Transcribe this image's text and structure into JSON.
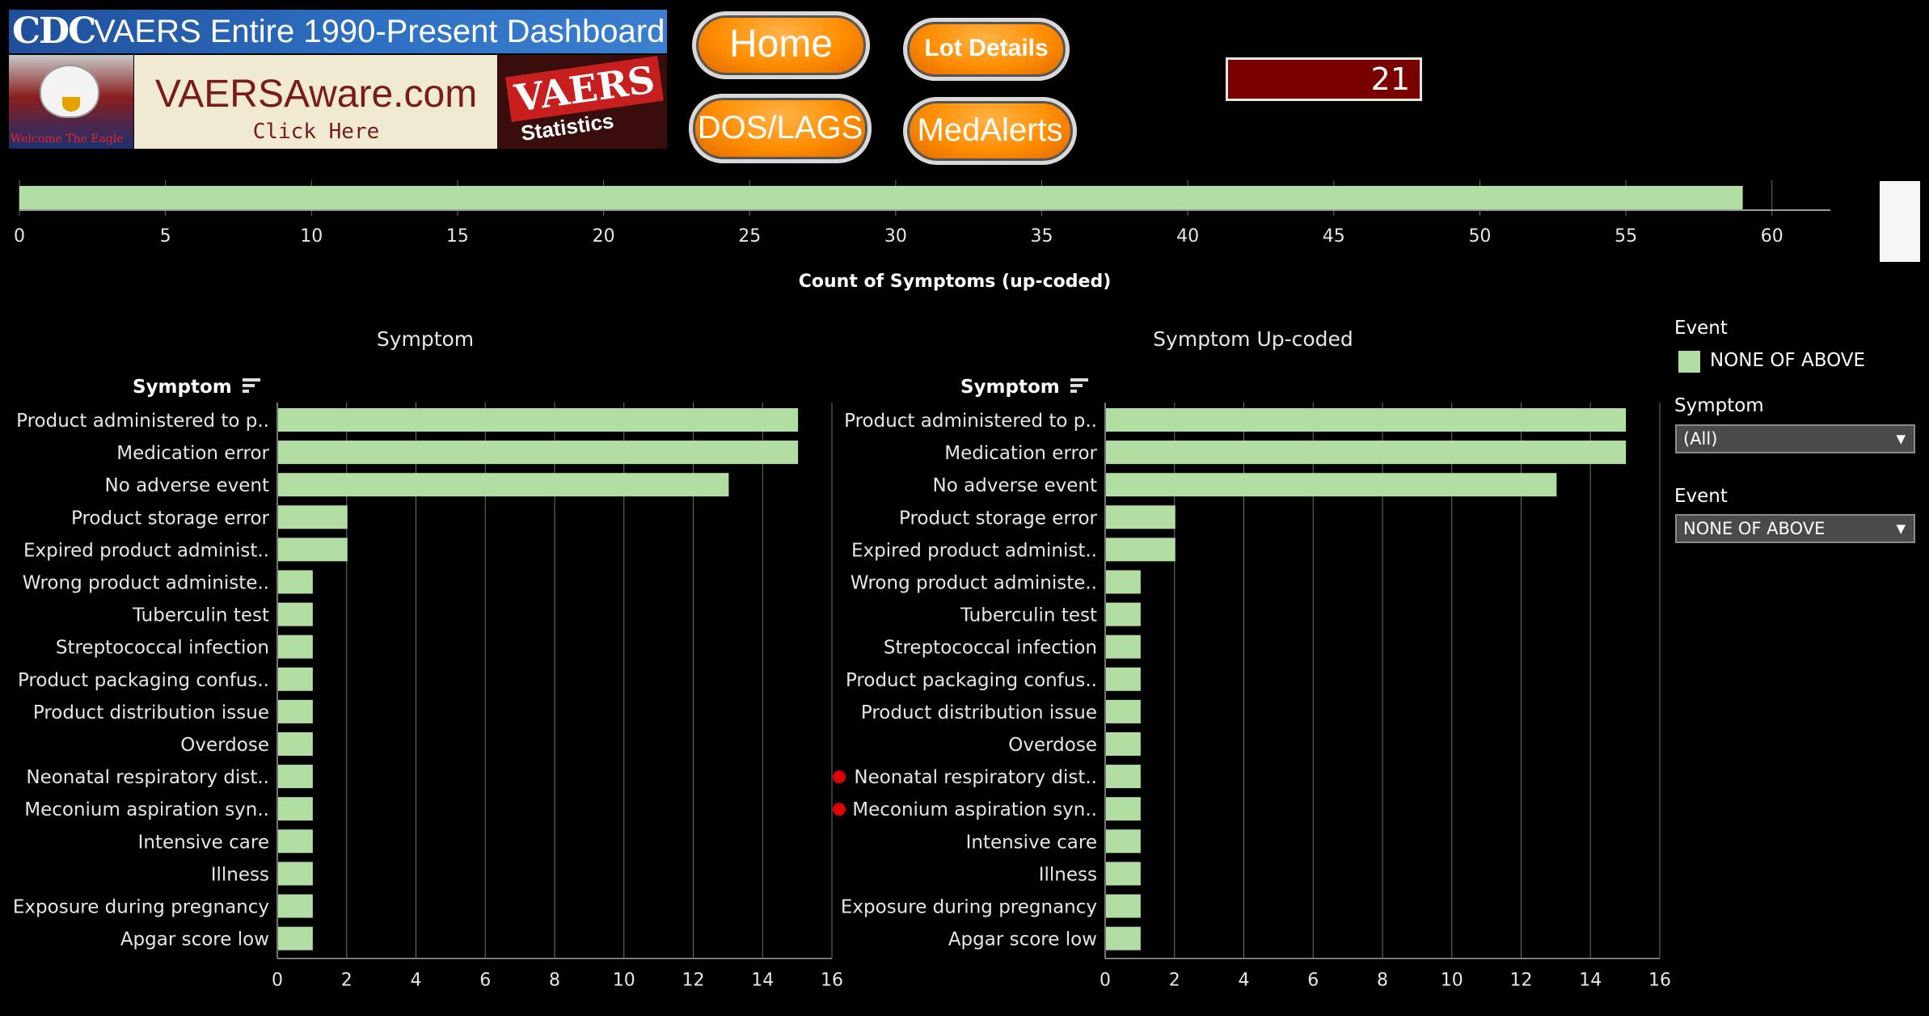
{
  "banner": {
    "cdc_logo": "CDC",
    "title": "VAERS Entire 1990-Present Dashboard",
    "eagle_caption": "Welcome The Eagle",
    "aware_title": "VAERSAware.com",
    "aware_sub": "Click Here",
    "vaers_word": "VAERS",
    "vaers_sub": "Statistics"
  },
  "buttons": {
    "home": "Home",
    "lot_details": "Lot Details",
    "dos_lags": "DOS/LAGS",
    "medalerts": "MedAlerts"
  },
  "count_display": "21",
  "colors": {
    "bar": "#b3dea3",
    "background": "#000000",
    "grid": "#6f6f6f",
    "axis_text": "#e6e6e6",
    "marker": "#e00000",
    "count_box": "#7a0000"
  },
  "filters": {
    "legend_title": "Event",
    "legend_item": "NONE OF ABOVE",
    "symptom_label": "Symptom",
    "symptom_value": "(All)",
    "event_label": "Event",
    "event_value": "NONE OF ABOVE"
  },
  "chart_data": [
    {
      "type": "bar",
      "orientation": "horizontal",
      "xlabel": "Count of Symptoms (up-coded)",
      "categories": [
        ""
      ],
      "values": [
        59
      ],
      "xlim": [
        0,
        62
      ],
      "ticks": [
        0,
        5,
        10,
        15,
        20,
        25,
        30,
        35,
        40,
        45,
        50,
        55,
        60
      ],
      "grid": true
    },
    {
      "type": "bar",
      "orientation": "horizontal",
      "title": "Symptom",
      "ylabel": "Symptom",
      "categories": [
        "Product administered to p..",
        "Medication error",
        "No adverse event",
        "Product storage error",
        "Expired product administ..",
        "Wrong product administe..",
        "Tuberculin test",
        "Streptococcal infection",
        "Product packaging confus..",
        "Product distribution issue",
        "Overdose",
        "Neonatal respiratory dist..",
        "Meconium aspiration syn..",
        "Intensive care",
        "Illness",
        "Exposure during pregnancy",
        "Apgar score low"
      ],
      "values": [
        15,
        15,
        13,
        2,
        2,
        1,
        1,
        1,
        1,
        1,
        1,
        1,
        1,
        1,
        1,
        1,
        1
      ],
      "xlim": [
        0,
        16
      ],
      "ticks": [
        0,
        2,
        4,
        6,
        8,
        10,
        12,
        14,
        16
      ],
      "grid": true
    },
    {
      "type": "bar",
      "orientation": "horizontal",
      "title": "Symptom Up-coded",
      "ylabel": "Symptom",
      "categories": [
        "Product administered to p..",
        "Medication error",
        "No adverse event",
        "Product storage error",
        "Expired product administ..",
        "Wrong product administe..",
        "Tuberculin test",
        "Streptococcal infection",
        "Product packaging confus..",
        "Product distribution issue",
        "Overdose",
        "Neonatal respiratory dist..",
        "Meconium aspiration syn..",
        "Intensive care",
        "Illness",
        "Exposure during pregnancy",
        "Apgar score low"
      ],
      "values": [
        15,
        15,
        13,
        2,
        2,
        1,
        1,
        1,
        1,
        1,
        1,
        1,
        1,
        1,
        1,
        1,
        1
      ],
      "xlim": [
        0,
        16
      ],
      "ticks": [
        0,
        2,
        4,
        6,
        8,
        10,
        12,
        14,
        16
      ],
      "grid": true,
      "highlighted_categories": [
        "Neonatal respiratory dist..",
        "Meconium aspiration syn.."
      ]
    }
  ]
}
